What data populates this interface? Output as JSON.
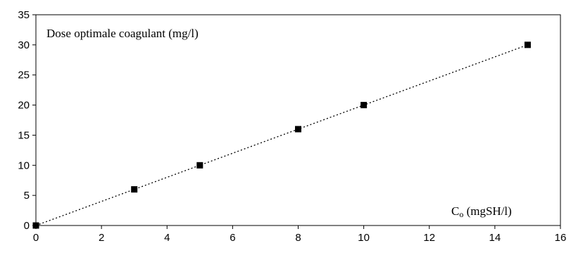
{
  "chart_data": {
    "type": "scatter",
    "x": [
      0,
      3,
      5,
      8,
      10,
      15
    ],
    "y": [
      0,
      6,
      10,
      16,
      20,
      30
    ],
    "trendline": {
      "style": "dotted",
      "x": [
        0,
        15
      ],
      "y": [
        0,
        30
      ]
    },
    "xlim": [
      0,
      16
    ],
    "ylim": [
      0,
      35
    ],
    "xticks": [
      0,
      2,
      4,
      6,
      8,
      10,
      12,
      14,
      16
    ],
    "yticks": [
      0,
      5,
      10,
      15,
      20,
      25,
      30,
      35
    ],
    "ylabel": "Dose optimale coagulant (mg/l)",
    "xlabel": {
      "main": "C",
      "subscript": "o",
      "rest": " (mgSH/l)"
    },
    "grid": false,
    "legend": "none",
    "colors": {
      "marker": "#000000",
      "axis": "#000000",
      "background": "#ffffff"
    }
  }
}
